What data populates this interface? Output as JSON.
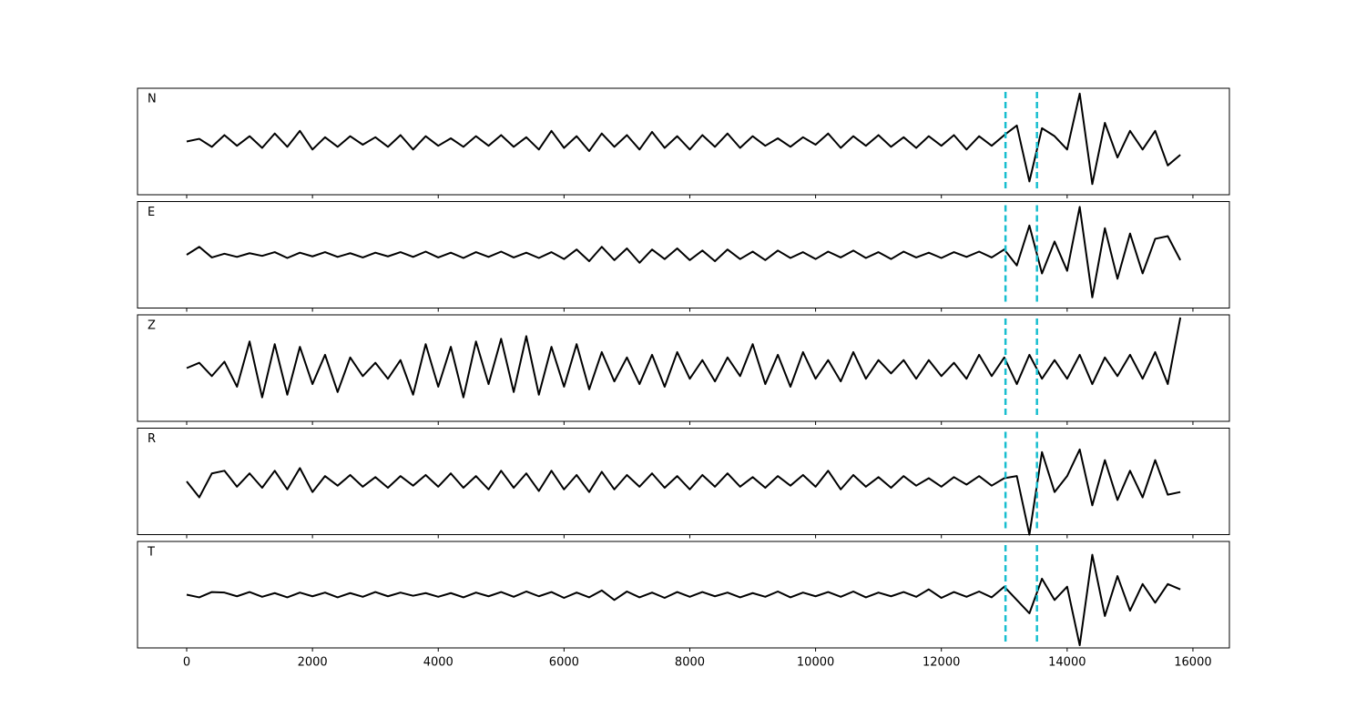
{
  "chart_data": [
    {
      "type": "line",
      "label": "N",
      "color": "#000000",
      "xlim": [
        -782,
        16580
      ],
      "ylim": [
        -1,
        1
      ],
      "xticks": [
        0,
        2000,
        4000,
        6000,
        8000,
        10000,
        12000,
        14000,
        16000
      ],
      "vlines": [
        13020,
        13520
      ],
      "vline_color": "#17becf",
      "x": [
        0,
        200,
        400,
        600,
        800,
        1000,
        1200,
        1400,
        1600,
        1800,
        2000,
        2200,
        2400,
        2600,
        2800,
        3000,
        3200,
        3400,
        3600,
        3800,
        4000,
        4200,
        4400,
        4600,
        4800,
        5000,
        5200,
        5400,
        5600,
        5800,
        6000,
        6200,
        6400,
        6600,
        6800,
        7000,
        7200,
        7400,
        7600,
        7800,
        8000,
        8200,
        8400,
        8600,
        8800,
        9000,
        9200,
        9400,
        9600,
        9800,
        10000,
        10200,
        10400,
        10600,
        10800,
        11000,
        11200,
        11400,
        11600,
        11800,
        12000,
        12200,
        12400,
        12600,
        12800,
        13000,
        13200,
        13400,
        13600,
        13800,
        14000,
        14200,
        14400,
        14600,
        14800,
        15000,
        15200,
        15400,
        15600,
        15800
      ],
      "values": [
        0.0,
        0.05,
        -0.1,
        0.12,
        -0.08,
        0.1,
        -0.12,
        0.15,
        -0.1,
        0.2,
        -0.15,
        0.08,
        -0.1,
        0.1,
        -0.06,
        0.08,
        -0.1,
        0.12,
        -0.15,
        0.1,
        -0.08,
        0.06,
        -0.1,
        0.1,
        -0.08,
        0.12,
        -0.1,
        0.08,
        -0.15,
        0.2,
        -0.12,
        0.1,
        -0.18,
        0.15,
        -0.1,
        0.12,
        -0.15,
        0.18,
        -0.12,
        0.1,
        -0.15,
        0.12,
        -0.1,
        0.15,
        -0.12,
        0.1,
        -0.08,
        0.06,
        -0.1,
        0.08,
        -0.06,
        0.15,
        -0.12,
        0.1,
        -0.08,
        0.12,
        -0.1,
        0.08,
        -0.12,
        0.1,
        -0.08,
        0.12,
        -0.15,
        0.1,
        -0.08,
        0.12,
        0.3,
        -0.75,
        0.25,
        0.1,
        -0.15,
        0.9,
        -0.8,
        0.35,
        -0.3,
        0.2,
        -0.15,
        0.2,
        -0.45,
        -0.25
      ]
    },
    {
      "type": "line",
      "label": "E",
      "color": "#000000",
      "xlim": [
        -782,
        16580
      ],
      "ylim": [
        -1,
        1
      ],
      "xticks": [
        0,
        2000,
        4000,
        6000,
        8000,
        10000,
        12000,
        14000,
        16000
      ],
      "vlines": [
        13020,
        13520
      ],
      "vline_color": "#17becf",
      "x": [
        0,
        200,
        400,
        600,
        800,
        1000,
        1200,
        1400,
        1600,
        1800,
        2000,
        2200,
        2400,
        2600,
        2800,
        3000,
        3200,
        3400,
        3600,
        3800,
        4000,
        4200,
        4400,
        4600,
        4800,
        5000,
        5200,
        5400,
        5600,
        5800,
        6000,
        6200,
        6400,
        6600,
        6800,
        7000,
        7200,
        7400,
        7600,
        7800,
        8000,
        8200,
        8400,
        8600,
        8800,
        9000,
        9200,
        9400,
        9600,
        9800,
        10000,
        10200,
        10400,
        10600,
        10800,
        11000,
        11200,
        11400,
        11600,
        11800,
        12000,
        12200,
        12400,
        12600,
        12800,
        13000,
        13200,
        13400,
        13600,
        13800,
        14000,
        14200,
        14400,
        14600,
        14800,
        15000,
        15200,
        15400,
        15600,
        15800
      ],
      "values": [
        0.0,
        0.15,
        -0.05,
        0.02,
        -0.04,
        0.03,
        -0.02,
        0.05,
        -0.06,
        0.04,
        -0.03,
        0.05,
        -0.04,
        0.03,
        -0.05,
        0.04,
        -0.03,
        0.05,
        -0.04,
        0.06,
        -0.05,
        0.04,
        -0.06,
        0.05,
        -0.04,
        0.06,
        -0.05,
        0.04,
        -0.06,
        0.05,
        -0.08,
        0.1,
        -0.12,
        0.15,
        -0.1,
        0.12,
        -0.15,
        0.1,
        -0.08,
        0.12,
        -0.1,
        0.08,
        -0.12,
        0.1,
        -0.08,
        0.06,
        -0.1,
        0.08,
        -0.06,
        0.05,
        -0.08,
        0.06,
        -0.05,
        0.08,
        -0.06,
        0.05,
        -0.08,
        0.06,
        -0.05,
        0.04,
        -0.06,
        0.05,
        -0.04,
        0.06,
        -0.05,
        0.1,
        -0.2,
        0.55,
        -0.35,
        0.25,
        -0.3,
        0.9,
        -0.8,
        0.5,
        -0.45,
        0.4,
        -0.35,
        0.3,
        0.35,
        -0.1
      ]
    },
    {
      "type": "line",
      "label": "Z",
      "color": "#000000",
      "xlim": [
        -782,
        16580
      ],
      "ylim": [
        -1,
        1
      ],
      "xticks": [
        0,
        2000,
        4000,
        6000,
        8000,
        10000,
        12000,
        14000,
        16000
      ],
      "vlines": [
        13020,
        13520
      ],
      "vline_color": "#17becf",
      "x": [
        0,
        200,
        400,
        600,
        800,
        1000,
        1200,
        1400,
        1600,
        1800,
        2000,
        2200,
        2400,
        2600,
        2800,
        3000,
        3200,
        3400,
        3600,
        3800,
        4000,
        4200,
        4400,
        4600,
        4800,
        5000,
        5200,
        5400,
        5600,
        5800,
        6000,
        6200,
        6400,
        6600,
        6800,
        7000,
        7200,
        7400,
        7600,
        7800,
        8000,
        8200,
        8400,
        8600,
        8800,
        9000,
        9200,
        9400,
        9600,
        9800,
        10000,
        10200,
        10400,
        10600,
        10800,
        11000,
        11200,
        11400,
        11600,
        11800,
        12000,
        12200,
        12400,
        12600,
        12800,
        13000,
        13200,
        13400,
        13600,
        13800,
        14000,
        14200,
        14400,
        14600,
        14800,
        15000,
        15200,
        15400,
        15600,
        15800
      ],
      "values": [
        0.0,
        0.1,
        -0.15,
        0.12,
        -0.35,
        0.5,
        -0.55,
        0.45,
        -0.5,
        0.4,
        -0.3,
        0.25,
        -0.45,
        0.2,
        -0.15,
        0.1,
        -0.2,
        0.15,
        -0.5,
        0.45,
        -0.35,
        0.4,
        -0.55,
        0.5,
        -0.3,
        0.55,
        -0.45,
        0.6,
        -0.5,
        0.4,
        -0.35,
        0.45,
        -0.4,
        0.3,
        -0.25,
        0.2,
        -0.3,
        0.25,
        -0.35,
        0.3,
        -0.2,
        0.15,
        -0.25,
        0.2,
        -0.15,
        0.45,
        -0.3,
        0.25,
        -0.35,
        0.3,
        -0.2,
        0.15,
        -0.25,
        0.3,
        -0.2,
        0.15,
        -0.1,
        0.15,
        -0.2,
        0.15,
        -0.15,
        0.1,
        -0.2,
        0.25,
        -0.15,
        0.2,
        -0.3,
        0.25,
        -0.2,
        0.15,
        -0.2,
        0.25,
        -0.3,
        0.2,
        -0.15,
        0.25,
        -0.2,
        0.3,
        -0.3,
        0.95
      ]
    },
    {
      "type": "line",
      "label": "R",
      "color": "#000000",
      "xlim": [
        -782,
        16580
      ],
      "ylim": [
        -1,
        1
      ],
      "xticks": [
        0,
        2000,
        4000,
        6000,
        8000,
        10000,
        12000,
        14000,
        16000
      ],
      "vlines": [
        13020,
        13520
      ],
      "vline_color": "#17becf",
      "x": [
        0,
        200,
        400,
        600,
        800,
        1000,
        1200,
        1400,
        1600,
        1800,
        2000,
        2200,
        2400,
        2600,
        2800,
        3000,
        3200,
        3400,
        3600,
        3800,
        4000,
        4200,
        4400,
        4600,
        4800,
        5000,
        5200,
        5400,
        5600,
        5800,
        6000,
        6200,
        6400,
        6600,
        6800,
        7000,
        7200,
        7400,
        7600,
        7800,
        8000,
        8200,
        8400,
        8600,
        8800,
        9000,
        9200,
        9400,
        9600,
        9800,
        10000,
        10200,
        10400,
        10600,
        10800,
        11000,
        11200,
        11400,
        11600,
        11800,
        12000,
        12200,
        12400,
        12600,
        12800,
        13000,
        13200,
        13400,
        13600,
        13800,
        14000,
        14200,
        14400,
        14600,
        14800,
        15000,
        15200,
        15400,
        15600,
        15800
      ],
      "values": [
        0.0,
        -0.3,
        0.15,
        0.2,
        -0.1,
        0.15,
        -0.12,
        0.2,
        -0.15,
        0.25,
        -0.2,
        0.1,
        -0.08,
        0.12,
        -0.1,
        0.08,
        -0.12,
        0.1,
        -0.08,
        0.12,
        -0.1,
        0.15,
        -0.12,
        0.1,
        -0.15,
        0.2,
        -0.12,
        0.15,
        -0.18,
        0.2,
        -0.15,
        0.12,
        -0.2,
        0.18,
        -0.15,
        0.12,
        -0.1,
        0.15,
        -0.12,
        0.1,
        -0.15,
        0.12,
        -0.1,
        0.15,
        -0.1,
        0.08,
        -0.12,
        0.1,
        -0.08,
        0.12,
        -0.1,
        0.2,
        -0.15,
        0.12,
        -0.1,
        0.08,
        -0.12,
        0.1,
        -0.08,
        0.06,
        -0.1,
        0.08,
        -0.06,
        0.1,
        -0.08,
        0.06,
        0.1,
        -1.0,
        0.55,
        -0.2,
        0.1,
        0.6,
        -0.45,
        0.4,
        -0.35,
        0.2,
        -0.3,
        0.4,
        -0.25,
        -0.2
      ]
    },
    {
      "type": "line",
      "label": "T",
      "color": "#000000",
      "xlim": [
        -782,
        16580
      ],
      "ylim": [
        -1,
        1
      ],
      "xticks": [
        0,
        2000,
        4000,
        6000,
        8000,
        10000,
        12000,
        14000,
        16000
      ],
      "vlines": [
        13020,
        13520
      ],
      "vline_color": "#17becf",
      "x": [
        0,
        200,
        400,
        600,
        800,
        1000,
        1200,
        1400,
        1600,
        1800,
        2000,
        2200,
        2400,
        2600,
        2800,
        3000,
        3200,
        3400,
        3600,
        3800,
        4000,
        4200,
        4400,
        4600,
        4800,
        5000,
        5200,
        5400,
        5600,
        5800,
        6000,
        6200,
        6400,
        6600,
        6800,
        7000,
        7200,
        7400,
        7600,
        7800,
        8000,
        8200,
        8400,
        8600,
        8800,
        9000,
        9200,
        9400,
        9600,
        9800,
        10000,
        10200,
        10400,
        10600,
        10800,
        11000,
        11200,
        11400,
        11600,
        11800,
        12000,
        12200,
        12400,
        12600,
        12800,
        13000,
        13200,
        13400,
        13600,
        13800,
        14000,
        14200,
        14400,
        14600,
        14800,
        15000,
        15200,
        15400,
        15600,
        15800
      ],
      "values": [
        0.0,
        -0.05,
        0.05,
        0.04,
        -0.03,
        0.05,
        -0.04,
        0.03,
        -0.05,
        0.04,
        -0.03,
        0.04,
        -0.05,
        0.03,
        -0.04,
        0.05,
        -0.03,
        0.04,
        -0.02,
        0.03,
        -0.04,
        0.03,
        -0.05,
        0.04,
        -0.03,
        0.05,
        -0.04,
        0.06,
        -0.03,
        0.05,
        -0.06,
        0.04,
        -0.05,
        0.08,
        -0.1,
        0.06,
        -0.05,
        0.04,
        -0.06,
        0.05,
        -0.04,
        0.05,
        -0.03,
        0.04,
        -0.05,
        0.03,
        -0.04,
        0.06,
        -0.05,
        0.04,
        -0.03,
        0.05,
        -0.04,
        0.06,
        -0.05,
        0.04,
        -0.03,
        0.05,
        -0.04,
        0.1,
        -0.06,
        0.05,
        -0.04,
        0.06,
        -0.05,
        0.15,
        -0.1,
        -0.35,
        0.3,
        -0.1,
        0.15,
        -0.95,
        0.75,
        -0.4,
        0.35,
        -0.3,
        0.2,
        -0.15,
        0.2,
        0.1
      ]
    }
  ]
}
